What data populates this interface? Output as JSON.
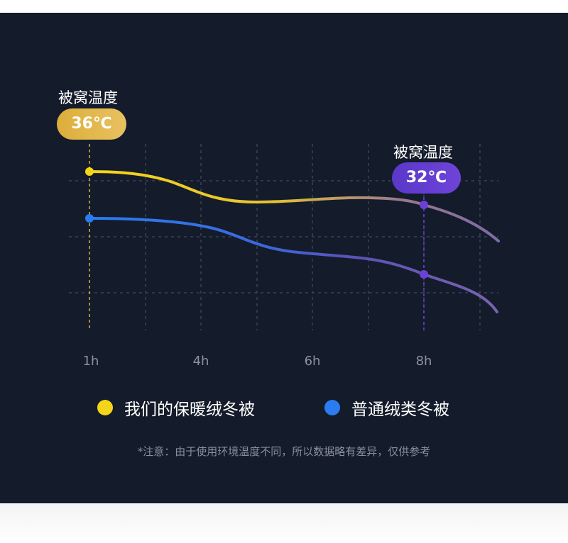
{
  "chart_data": {
    "type": "line",
    "categories": [
      "1h",
      "4h",
      "6h",
      "8h"
    ],
    "series": [
      {
        "name": "我们的保暖绒冬被",
        "color": "#f5d51a"
      },
      {
        "name": "普通绒类冬被",
        "color": "#2b7cf0"
      }
    ],
    "callouts": [
      {
        "label": "被窝温度",
        "value": "36℃",
        "at": "1h",
        "series": "我们的保暖绒冬被",
        "color": "#dcae3a"
      },
      {
        "label": "被窝温度",
        "value": "32℃",
        "at": "8h",
        "series": "我们的保暖绒冬被",
        "color": "#6a40d6"
      }
    ],
    "grid": true,
    "legend": "bottom"
  },
  "note": "*注意：由于使用环境温度不同，所以数据略有差异，仅供参考"
}
